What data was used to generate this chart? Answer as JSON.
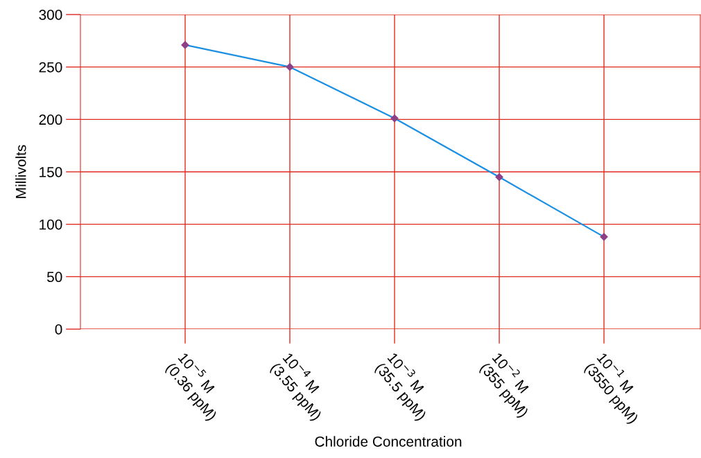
{
  "chart_data": {
    "type": "line",
    "xlabel": "Chloride Concentration",
    "ylabel": "Millivolts",
    "categories": [
      "10$^{−5}$ M\n(0.36 ppM)",
      "10$^{−4}$ M\n(3.55 ppM)",
      "10$^{−3}$ M\n(35.5 ppM)",
      "10$^{−2}$ M\n(355 ppM)",
      "10$^{−1}$ M\n(3550 ppM)"
    ],
    "series": [
      {
        "color": "#1a8fe3",
        "values": [
          271,
          250,
          201,
          145,
          88
        ]
      }
    ],
    "ylim": [
      0,
      300
    ],
    "yticks": [
      0,
      50,
      100,
      150,
      200,
      250,
      300
    ],
    "grid": true,
    "marker": "diamond",
    "line_style": "solid"
  }
}
